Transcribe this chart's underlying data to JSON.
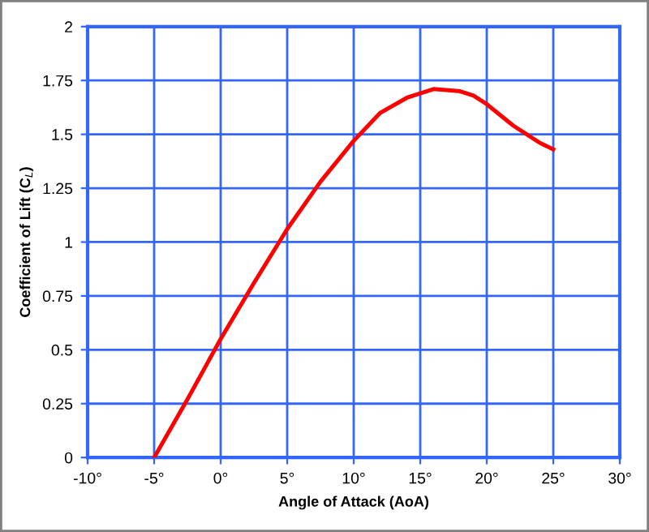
{
  "chart_data": {
    "type": "line",
    "xlabel": "Angle of Attack (AoA)",
    "ylabel": "Coefficient of Lift (C$_{L}$)",
    "x": [
      -5,
      -2.5,
      0,
      2.5,
      5,
      7.5,
      10,
      12,
      14,
      16,
      18,
      19,
      20,
      21,
      22,
      23,
      24,
      25
    ],
    "series": [
      {
        "color": "#ff0000",
        "values": [
          0,
          0.27,
          0.55,
          0.81,
          1.06,
          1.28,
          1.47,
          1.6,
          1.67,
          1.71,
          1.7,
          1.68,
          1.64,
          1.59,
          1.54,
          1.5,
          1.46,
          1.43
        ]
      }
    ],
    "xlim": [
      -10,
      30
    ],
    "ylim": [
      0,
      2
    ],
    "xticks": [
      {
        "value": -10,
        "label": "-10°"
      },
      {
        "value": -5,
        "label": "-5°"
      },
      {
        "value": 0,
        "label": "0°"
      },
      {
        "value": 5,
        "label": "5°"
      },
      {
        "value": 10,
        "label": "10°"
      },
      {
        "value": 15,
        "label": "15°"
      },
      {
        "value": 20,
        "label": "20°"
      },
      {
        "value": 25,
        "label": "25°"
      },
      {
        "value": 30,
        "label": "30°"
      }
    ],
    "yticks": [
      0,
      0.25,
      0.5,
      0.75,
      1,
      1.25,
      1.5,
      1.75,
      2
    ],
    "grid": true,
    "marker": "none",
    "line_style": "solid"
  }
}
